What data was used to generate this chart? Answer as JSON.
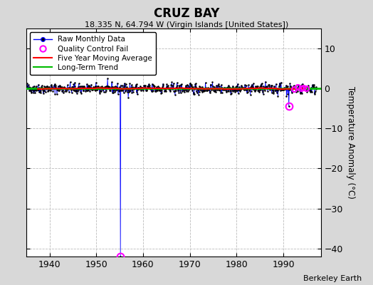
{
  "title": "CRUZ BAY",
  "subtitle": "18.335 N, 64.794 W (Virgin Islands [United States])",
  "ylabel": "Temperature Anomaly (°C)",
  "xlabel_credit": "Berkeley Earth",
  "xlim": [
    1935,
    1998
  ],
  "ylim": [
    -42,
    15
  ],
  "yticks": [
    -40,
    -30,
    -20,
    -10,
    0,
    10
  ],
  "xticks": [
    1940,
    1950,
    1960,
    1970,
    1980,
    1990
  ],
  "bg_color": "#d8d8d8",
  "plot_bg_color": "#ffffff",
  "raw_color": "#000000",
  "raw_line_color": "#0000ff",
  "ma_color": "#ff0000",
  "trend_color": "#00bb00",
  "qc_color": "#ff00ff",
  "grid_color": "#bbbbbb",
  "data_start_year": 1935.0,
  "data_end_year": 1997.0,
  "outlier_year_1": 1955.2,
  "outlier_val_1": -42.0,
  "qc2_year": 1991.2,
  "qc2_val": -4.5,
  "qc3_years": [
    1992.3,
    1993.1,
    1993.8,
    1994.3,
    1994.8
  ],
  "seed": 42
}
